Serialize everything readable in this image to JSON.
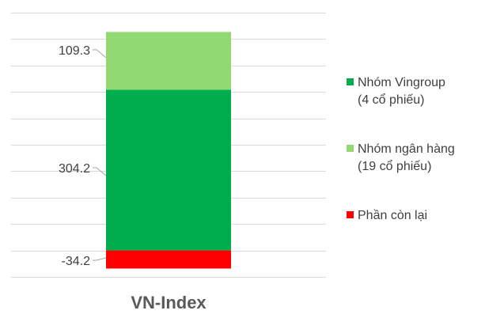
{
  "chart_data": {
    "type": "stacked-bar",
    "categories": [
      "VN-Index"
    ],
    "series": [
      {
        "name": "Nhóm Vingroup (4 cổ phiếu)",
        "name_lines": [
          "Nhóm Vingroup",
          "(4 cổ phiếu)"
        ],
        "values": [
          304.2
        ],
        "label": "304.2",
        "color": "#00AD4E"
      },
      {
        "name": "Nhóm ngân hàng (19 cổ phiếu)",
        "name_lines": [
          "Nhóm ngân hàng",
          "(19 cổ phiếu)"
        ],
        "values": [
          109.3
        ],
        "label": "109.3",
        "color": "#92D973"
      },
      {
        "name": "Phần còn lại",
        "name_lines": [
          "Phần còn lại"
        ],
        "values": [
          -34.2
        ],
        "label": "-34.2",
        "color": "#FF0000"
      }
    ],
    "ylim": [
      -50,
      450
    ],
    "grid_step": 50,
    "grid": true,
    "y_tick_labels_shown": false,
    "legend_position": "right"
  }
}
